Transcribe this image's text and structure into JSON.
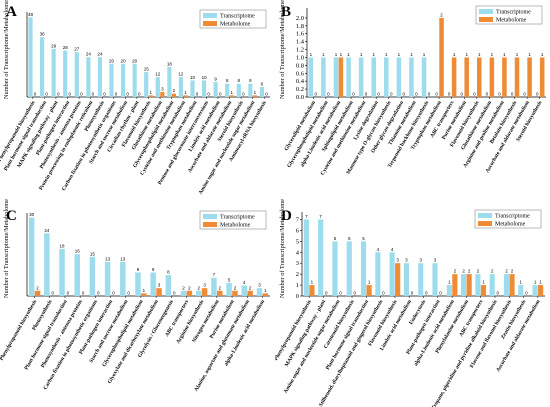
{
  "colors": {
    "transcriptome": "#9ddcec",
    "metabolome": "#ef8a35",
    "axis": "#000000"
  },
  "chart_data": [
    {
      "panel_label": "A",
      "type": "bar",
      "ylabel": "Number of Transcriptome/Metabolome",
      "ylim": [
        0,
        50
      ],
      "yticks": [],
      "categories": [
        "Phenylpropanoid biosynthesis",
        "Plant hormone signal transduction",
        "MAPK signaling pathway - plant",
        "Plant-pathogen interaction",
        "Photosynthesis - antenna proteins",
        "Protein processing in endoplasmic reticulum",
        "Photosynthesis",
        "Carbon fixation in photosynthetic organisms",
        "Starch and sucrose metabolism",
        "Circadian rhythm - plant",
        "Flavonoid biosynthesis",
        "Glutathione metabolism",
        "Glycerophospholipid metabolism",
        "Cysteine and methionine metabolism",
        "Tryptophan metabolism",
        "Pentose and glucuronate interconversions",
        "Linoleic acid metabolism",
        "Ascorbate and aldarate metabolism",
        "Steroid biosynthesis",
        "Amino sugar and nucleotide sugar metabolism",
        "Aminoacyl-tRNA biosynthesis"
      ],
      "series": [
        {
          "name": "Transcriptome",
          "values": [
            48,
            36,
            29,
            28,
            27,
            24,
            24,
            20,
            20,
            20,
            15,
            12,
            18,
            12,
            10,
            10,
            9,
            8,
            8,
            8,
            6
          ]
        },
        {
          "name": "Metabolome",
          "values": [
            0,
            0,
            0,
            0,
            0,
            0,
            0,
            0,
            0,
            0,
            1,
            3,
            2,
            1,
            0,
            0,
            0,
            1,
            0,
            1,
            0
          ]
        }
      ],
      "legend": "top-right",
      "grid": false
    },
    {
      "panel_label": "B",
      "type": "bar",
      "ylabel": "Number of Transcriptome/Metabolome",
      "ylim": [
        0,
        2.2
      ],
      "yticks": [
        "0.0",
        "0.2",
        "0.4",
        "0.6",
        "0.8",
        "1.0",
        "1.2",
        "1.4",
        "1.6",
        "1.8",
        "2.0"
      ],
      "categories": [
        "Glycerolipid metabolism",
        "Glycerophospholipid metabolism",
        "alpha-Linolenic acid metabolism",
        "Sphingolipid metabolism",
        "Cysteine and methionine metabolism",
        "Lysine degradation",
        "Mannose type O-glycan biosynthesis",
        "Other glycan degradation",
        "Thiamine metabolism",
        "Terpenoid backbone biosynthesis",
        "Tryptophan metabolism",
        "ABC transporters",
        "Purine metabolism",
        "Flavonoid biosynthesis",
        "Glutathione metabolism",
        "Arginine and proline metabolism",
        "Betalain biosynthesis",
        "Ascorbate and aldarate metabolism",
        "Steroid biosynthesis"
      ],
      "series": [
        {
          "name": "Transcriptome",
          "values": [
            1,
            1,
            1,
            1,
            1,
            1,
            1,
            1,
            1,
            1,
            0,
            0,
            0,
            0,
            0,
            0,
            0,
            0,
            0
          ]
        },
        {
          "name": "Metabolome",
          "values": [
            0,
            0,
            1,
            0,
            0,
            0,
            0,
            0,
            0,
            0,
            2,
            1,
            1,
            1,
            1,
            1,
            1,
            1,
            1
          ]
        }
      ],
      "legend": "top-right",
      "grid": false
    },
    {
      "panel_label": "C",
      "type": "bar",
      "ylabel": "Number of Transcriptome/Metabolome",
      "ylim": [
        0,
        31
      ],
      "yticks": [],
      "categories": [
        "Phenylpropanoid biosynthesis",
        "Photosynthesis",
        "Plant hormone signal transduction",
        "Photosynthesis - antenna proteins",
        "Carbon fixation in photosynthetic organisms",
        "Plant-pathogen interaction",
        "Starch and sucrose metabolism",
        "Glycerophospholipid metabolism",
        "Glyoxylate and dicarboxylate metabolism",
        "Glycolysis / Gluconeogenesis",
        "ABC transporters",
        "Arginine biosynthesis",
        "Nitrogen metabolism",
        "Purine metabolism",
        "Alanine, aspartate and glutamate metabolism",
        "alpha-Linolenic acid metabolism"
      ],
      "series": [
        {
          "name": "Transcriptome",
          "values": [
            30,
            24,
            18,
            16,
            15,
            13,
            13,
            9,
            9,
            8,
            2,
            2,
            7,
            5,
            4,
            3
          ]
        },
        {
          "name": "Metabolome",
          "values": [
            2,
            0,
            0,
            0,
            0,
            0,
            0,
            1,
            3,
            0,
            2,
            3,
            2,
            2,
            2,
            1
          ]
        }
      ],
      "legend": "top-right",
      "grid": false
    },
    {
      "panel_label": "D",
      "type": "bar",
      "ylabel": "Number of Transcriptome/Metabolome",
      "ylim": [
        0,
        7.5
      ],
      "yticks": [
        "0",
        "1",
        "2",
        "3",
        "4",
        "5",
        "6",
        "7"
      ],
      "categories": [
        "Phenylpropanoid biosynthesis",
        "MAPK signaling pathway - plant",
        "Amino sugar and nucleotide sugar metabolism",
        "Carotenoid biosynthesis",
        "Plant hormone signal transduction",
        "Stilbenoid, diarylheptanoid and gingerol biosynthesis",
        "Flavonoid biosynthesis",
        "Linoleic acid metabolism",
        "Endocytosis",
        "Plant-pathogen interaction",
        "alpha-Linolenic acid metabolism",
        "Phenylalanine metabolism",
        "ABC transporters",
        "Tropane, piperidine and pyridine alkaloid biosynthesis",
        "Flavone and flavonol biosynthesis",
        "Zeatin biosynthesis",
        "Ascorbate and aldarate metabolism"
      ],
      "series": [
        {
          "name": "Transcriptome",
          "values": [
            7,
            7,
            5,
            5,
            5,
            4,
            4,
            3,
            3,
            3,
            1,
            2,
            2,
            2,
            2,
            1,
            1
          ]
        },
        {
          "name": "Metabolome",
          "values": [
            1,
            0,
            0,
            0,
            1,
            0,
            3,
            0,
            0,
            0,
            2,
            2,
            1,
            0,
            2,
            0,
            1
          ]
        }
      ],
      "legend": "top-right",
      "grid": false
    }
  ]
}
